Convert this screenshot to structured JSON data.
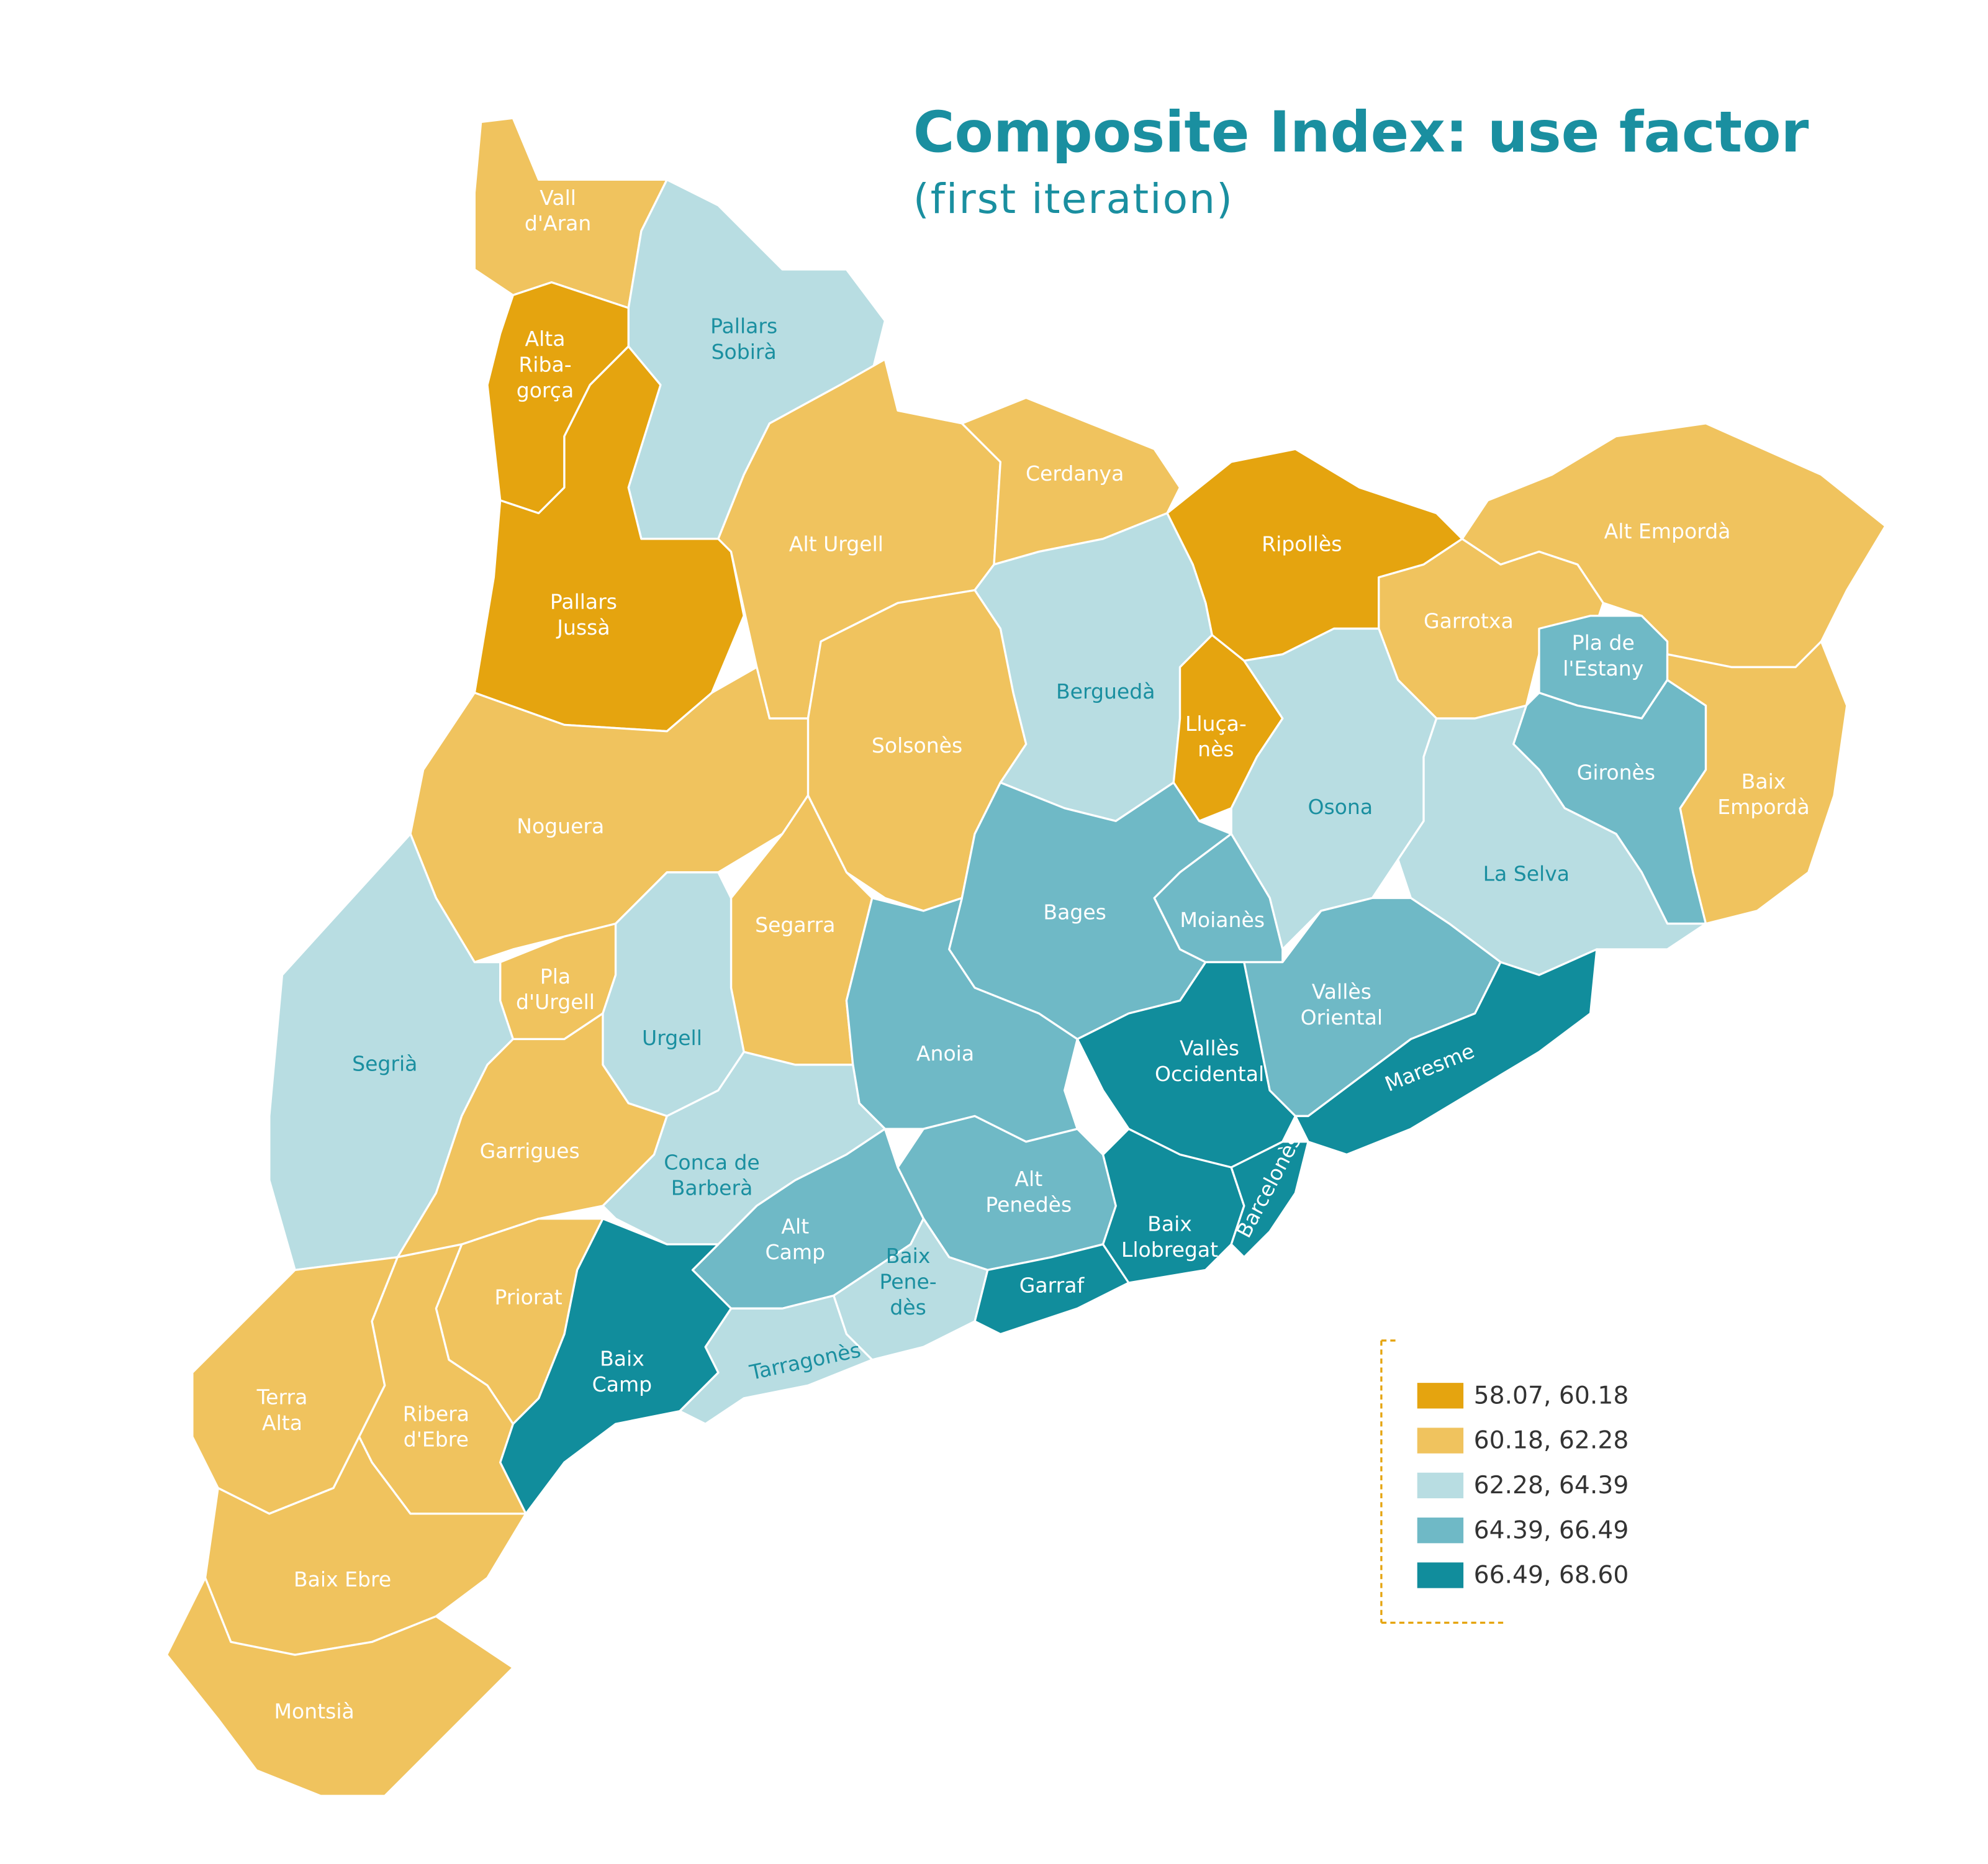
{
  "title": "Composite Index: use factor",
  "subtitle": "(first iteration)",
  "legend": {
    "items": [
      {
        "label": "58.07, 60.18",
        "color": "#e5a40f"
      },
      {
        "label": "60.18, 62.28",
        "color": "#f0c35e"
      },
      {
        "label": "62.28, 64.39",
        "color": "#b8dde2"
      },
      {
        "label": "64.39, 66.49",
        "color": "#6fb9c6"
      },
      {
        "label": "66.49, 68.60",
        "color": "#118d9c"
      }
    ]
  },
  "regions": [
    {
      "label": [
        "Vall",
        "d'Aran"
      ],
      "class": 1
    },
    {
      "label": [
        "Pallars",
        "Sobirà"
      ],
      "class": 2
    },
    {
      "label": [
        "Alta",
        "Riba-",
        "gorça"
      ],
      "class": 0
    },
    {
      "label": [
        "Pallars",
        "Jussà"
      ],
      "class": 0
    },
    {
      "label": [
        "Alt Urgell"
      ],
      "class": 1
    },
    {
      "label": [
        "Cerdanya"
      ],
      "class": 1
    },
    {
      "label": [
        "Ripollès"
      ],
      "class": 0
    },
    {
      "label": [
        "Alt Empordà"
      ],
      "class": 1
    },
    {
      "label": [
        "Garrotxa"
      ],
      "class": 1
    },
    {
      "label": [
        "Pla de",
        "l'Estany"
      ],
      "class": 3
    },
    {
      "label": [
        "Gironès"
      ],
      "class": 3
    },
    {
      "label": [
        "Baix",
        "Empordà"
      ],
      "class": 1
    },
    {
      "label": [
        "Berguedà"
      ],
      "class": 2
    },
    {
      "label": [
        "Lluça-",
        "nès"
      ],
      "class": 0
    },
    {
      "label": [
        "Osona"
      ],
      "class": 2
    },
    {
      "label": [
        "La Selva"
      ],
      "class": 2
    },
    {
      "label": [
        "Solsonès"
      ],
      "class": 1
    },
    {
      "label": [
        "Noguera"
      ],
      "class": 1
    },
    {
      "label": [
        "Segarra"
      ],
      "class": 1
    },
    {
      "label": [
        "Bages"
      ],
      "class": 3
    },
    {
      "label": [
        "Moianès"
      ],
      "class": 3
    },
    {
      "label": [
        "Pla",
        "d'Urgell"
      ],
      "class": 1
    },
    {
      "label": [
        "Urgell"
      ],
      "class": 2
    },
    {
      "label": [
        "Segrià"
      ],
      "class": 2
    },
    {
      "label": [
        "Garrigues"
      ],
      "class": 1
    },
    {
      "label": [
        "Anoia"
      ],
      "class": 3
    },
    {
      "label": [
        "Vallès",
        "Occidental"
      ],
      "class": 4
    },
    {
      "label": [
        "Vallès",
        "Oriental"
      ],
      "class": 3
    },
    {
      "label": [
        "Maresme"
      ],
      "class": 4
    },
    {
      "label": [
        "Conca de",
        "Barberà"
      ],
      "class": 2
    },
    {
      "label": [
        "Alt",
        "Penedès"
      ],
      "class": 3
    },
    {
      "label": [
        "Baix",
        "Llobregat"
      ],
      "class": 4
    },
    {
      "label": [
        "Barcelonès"
      ],
      "class": 4
    },
    {
      "label": [
        "Alt",
        "Camp"
      ],
      "class": 3
    },
    {
      "label": [
        "Garraf"
      ],
      "class": 4
    },
    {
      "label": [
        "Baix",
        "Pene-",
        "dès"
      ],
      "class": 2
    },
    {
      "label": [
        "Tarragonès"
      ],
      "class": 2
    },
    {
      "label": [
        "Baix",
        "Camp"
      ],
      "class": 4
    },
    {
      "label": [
        "Priorat"
      ],
      "class": 1
    },
    {
      "label": [
        "Terra",
        "Alta"
      ],
      "class": 1
    },
    {
      "label": [
        "Ribera",
        "d'Ebre"
      ],
      "class": 1
    },
    {
      "label": [
        "Baix Ebre"
      ],
      "class": 1
    },
    {
      "label": [
        "Montsià"
      ],
      "class": 1
    }
  ]
}
